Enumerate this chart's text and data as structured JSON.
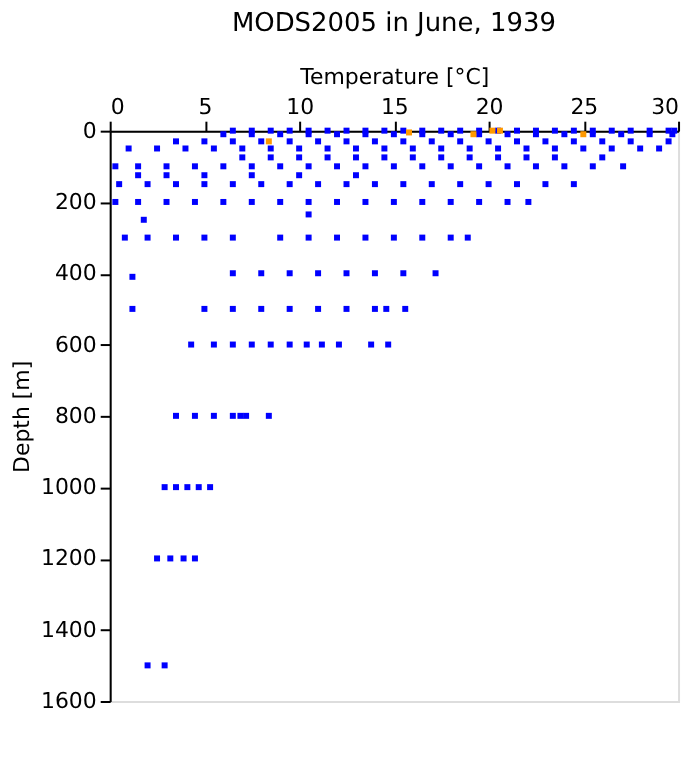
{
  "chart_data": {
    "type": "scatter",
    "title": "MODS2005 in June, 1939",
    "xlabel": "Temperature [°C]",
    "ylabel": "Depth [m]",
    "xlim": [
      0,
      30
    ],
    "xticks": [
      0,
      5,
      10,
      15,
      20,
      25,
      30
    ],
    "ylim": [
      1600,
      0
    ],
    "yticks": [
      0,
      200,
      400,
      600,
      800,
      1000,
      1200,
      1400,
      1600
    ],
    "grid": false,
    "legend": false,
    "marker": "square",
    "series": [
      {
        "color": "#0000ff",
        "x": [
          6.5,
          7.5,
          8.5,
          9.5,
          10.5,
          11.5,
          12.5,
          13.5,
          14.5,
          15.5,
          16.5,
          17.5,
          18.5,
          19.5,
          20.5,
          21.5,
          22.5,
          23.5,
          24.5,
          25.5,
          26.5,
          27.5,
          28.5,
          29.5,
          29.8,
          6,
          7.5,
          9,
          10.5,
          12,
          13.5,
          15,
          16.5,
          18,
          19.5,
          21,
          22.5,
          24,
          25.5,
          27,
          28.5,
          29.7,
          3.5,
          5,
          6.5,
          8,
          9.5,
          11,
          12.5,
          14,
          15.5,
          17,
          18.5,
          20,
          21.5,
          23,
          24.5,
          26,
          27.5,
          29.5,
          1,
          2.5,
          4,
          5.5,
          7,
          8.5,
          10,
          11.5,
          13,
          14.5,
          16,
          17.5,
          19,
          20.5,
          22,
          23.5,
          25,
          26.5,
          28,
          29,
          7,
          8.5,
          10,
          11.5,
          13,
          14.5,
          16,
          17.5,
          19,
          20.5,
          22,
          23.5,
          26,
          0.3,
          1.5,
          3,
          4.5,
          6,
          7.5,
          9,
          10.5,
          12,
          13.5,
          15,
          16.5,
          18,
          19.5,
          21,
          22.5,
          24,
          25.5,
          27.1,
          1.5,
          3,
          5,
          7.5,
          10,
          13,
          0.5,
          2,
          3.5,
          5,
          6.5,
          8,
          9.5,
          11,
          12.5,
          14,
          15.5,
          17,
          18.5,
          20,
          21.5,
          23,
          24.5,
          0.3,
          1.5,
          3,
          4.5,
          6,
          7.5,
          9,
          10.5,
          12,
          13.5,
          15,
          16.5,
          18,
          19.5,
          21,
          22.1,
          1.8,
          10.5,
          0.8,
          2,
          3.5,
          5,
          6.5,
          9,
          10.5,
          12,
          13.5,
          15,
          16.5,
          18,
          18.9,
          1.2,
          6.5,
          8,
          9.5,
          11,
          12.5,
          14,
          15.5,
          17.2,
          1.2,
          5,
          6.5,
          8,
          9.5,
          11,
          12.5,
          14,
          14.6,
          15.6,
          4.3,
          5.5,
          6.5,
          7.5,
          8.5,
          9.5,
          10.4,
          11.2,
          12.1,
          13.8,
          14.7,
          3.5,
          4.5,
          5.5,
          6.5,
          6.9,
          7.2,
          8.4,
          2.9,
          3.5,
          4.1,
          4.7,
          5.3,
          2.5,
          3.2,
          3.9,
          4.5,
          2.0,
          2.9
        ],
        "values": [
          0,
          0,
          0,
          0,
          0,
          0,
          0,
          0,
          0,
          0,
          0,
          0,
          0,
          0,
          0,
          0,
          0,
          0,
          0,
          0,
          0,
          0,
          0,
          0,
          0,
          10,
          10,
          10,
          10,
          10,
          10,
          10,
          10,
          10,
          10,
          10,
          10,
          10,
          10,
          10,
          10,
          10,
          30,
          30,
          30,
          30,
          30,
          30,
          30,
          30,
          30,
          30,
          30,
          30,
          30,
          30,
          30,
          30,
          30,
          30,
          50,
          50,
          50,
          50,
          50,
          50,
          50,
          50,
          50,
          50,
          50,
          50,
          50,
          50,
          50,
          50,
          50,
          50,
          50,
          50,
          75,
          75,
          75,
          75,
          75,
          75,
          75,
          75,
          75,
          75,
          75,
          75,
          75,
          100,
          100,
          100,
          100,
          100,
          100,
          100,
          100,
          100,
          100,
          100,
          100,
          100,
          100,
          100,
          100,
          100,
          100,
          100,
          125,
          125,
          125,
          125,
          125,
          125,
          150,
          150,
          150,
          150,
          150,
          150,
          150,
          150,
          150,
          150,
          150,
          150,
          150,
          150,
          150,
          150,
          150,
          200,
          200,
          200,
          200,
          200,
          200,
          200,
          200,
          200,
          200,
          200,
          200,
          200,
          200,
          200,
          200,
          250,
          235,
          300,
          300,
          300,
          300,
          300,
          300,
          300,
          300,
          300,
          300,
          300,
          300,
          300,
          410,
          400,
          400,
          400,
          400,
          400,
          400,
          400,
          400,
          500,
          500,
          500,
          500,
          500,
          500,
          500,
          500,
          500,
          500,
          600,
          600,
          600,
          600,
          600,
          600,
          600,
          600,
          600,
          600,
          600,
          800,
          800,
          800,
          800,
          800,
          800,
          800,
          1000,
          1000,
          1000,
          1000,
          1000,
          1200,
          1200,
          1200,
          1200,
          1500,
          1500
        ]
      },
      {
        "color": "#ff9900",
        "x": [
          8.4,
          15.8,
          19.2,
          20.2,
          20.6,
          25
        ],
        "values": [
          30,
          5,
          10,
          0,
          0,
          10
        ]
      }
    ]
  }
}
